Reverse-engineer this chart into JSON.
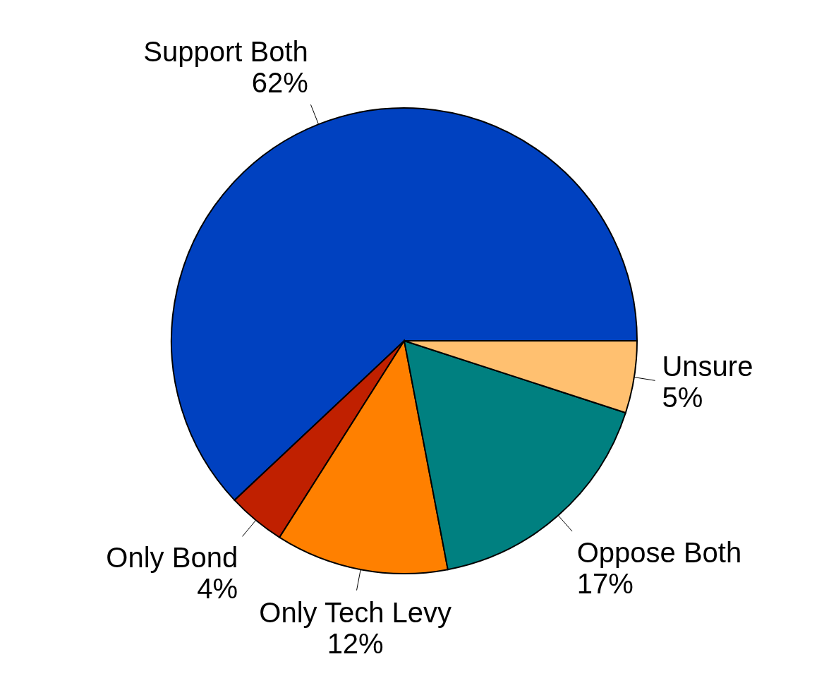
{
  "chart_data": {
    "type": "pie",
    "categories": [
      "Support Both",
      "Only Bond",
      "Only Tech Levy",
      "Oppose Both",
      "Unsure"
    ],
    "values": [
      62,
      4,
      12,
      17,
      5
    ],
    "value_labels": [
      "62%",
      "4%",
      "12%",
      "17%",
      "5%"
    ],
    "colors": [
      "#0041c0",
      "#c02000",
      "#ff8000",
      "#008080",
      "#ffc070"
    ],
    "legend": false
  }
}
